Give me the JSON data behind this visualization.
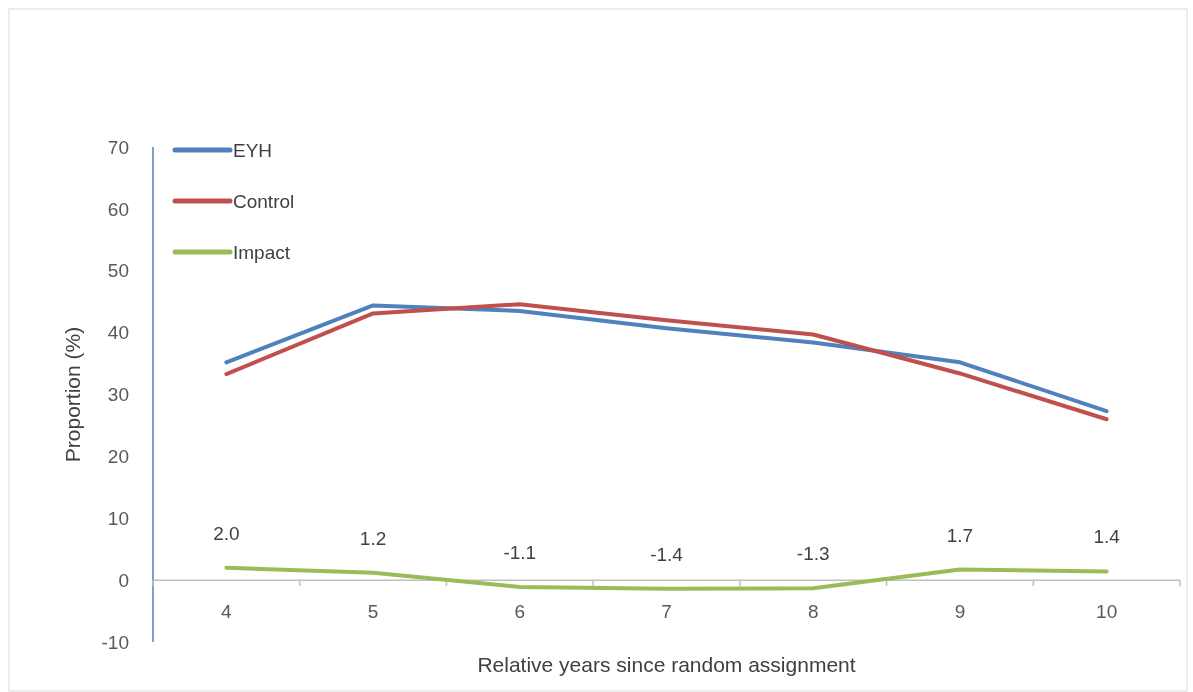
{
  "chart_data": {
    "type": "line",
    "xlabel": "Relative years since random assignment",
    "ylabel": "Proportion (%)",
    "categories": [
      "4",
      "5",
      "6",
      "7",
      "8",
      "9",
      "10"
    ],
    "ylim": [
      -10,
      70
    ],
    "yticks": [
      -10,
      0,
      10,
      20,
      30,
      40,
      50,
      60,
      70
    ],
    "grid": false,
    "legend": "top left",
    "marker": "none",
    "line_style": "solid",
    "series": [
      {
        "name": "EYH",
        "color": "#4f81bd",
        "values": [
          35.2,
          44.4,
          43.5,
          40.7,
          38.4,
          35.2,
          27.3
        ]
      },
      {
        "name": "Control",
        "color": "#c0504d",
        "values": [
          33.3,
          43.1,
          44.6,
          42.0,
          39.7,
          33.4,
          26.0
        ]
      },
      {
        "name": "Impact",
        "color": "#9bbb59",
        "values": [
          2.0,
          1.2,
          -1.1,
          -1.4,
          -1.3,
          1.7,
          1.4
        ],
        "value_labels": [
          "2.0",
          "1.2",
          "-1.1",
          "-1.4",
          "-1.3",
          "1.7",
          "1.4"
        ]
      }
    ]
  }
}
